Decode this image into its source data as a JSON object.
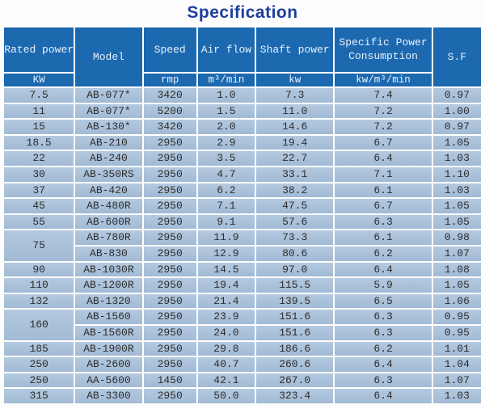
{
  "title": "Specification",
  "colors": {
    "title_color": "#1c3f9c",
    "header_bg": "#1c69b0",
    "header_text": "#e8f1fa",
    "row_bg": "#a7bfd9",
    "body_text": "#2d2d2d",
    "grid_line": "#ffffff"
  },
  "table": {
    "headers": [
      {
        "label": "Rated power",
        "unit": "KW"
      },
      {
        "label": "Model",
        "unit": ""
      },
      {
        "label": "Speed",
        "unit": "rmp"
      },
      {
        "label": "Air flow",
        "unit": "m³/min"
      },
      {
        "label": "Shaft power",
        "unit": "kw"
      },
      {
        "label": "Specific Power Consumption",
        "unit": "kw/m³/min"
      },
      {
        "label": "S.F",
        "unit": ""
      }
    ],
    "rows": [
      {
        "kw": "7.5",
        "kw_rowspan": 1,
        "model": "AB-077*",
        "speed": "3420",
        "air_flow": "1.0",
        "shaft_power": "7.3",
        "specific_power": "7.4",
        "sf": "0.97"
      },
      {
        "kw": "11",
        "kw_rowspan": 1,
        "model": "AB-077*",
        "speed": "5200",
        "air_flow": "1.5",
        "shaft_power": "11.0",
        "specific_power": "7.2",
        "sf": "1.00"
      },
      {
        "kw": "15",
        "kw_rowspan": 1,
        "model": "AB-130*",
        "speed": "3420",
        "air_flow": "2.0",
        "shaft_power": "14.6",
        "specific_power": "7.2",
        "sf": "0.97"
      },
      {
        "kw": "18.5",
        "kw_rowspan": 1,
        "model": "AB-210",
        "speed": "2950",
        "air_flow": "2.9",
        "shaft_power": "19.4",
        "specific_power": "6.7",
        "sf": "1.05"
      },
      {
        "kw": "22",
        "kw_rowspan": 1,
        "model": "AB-240",
        "speed": "2950",
        "air_flow": "3.5",
        "shaft_power": "22.7",
        "specific_power": "6.4",
        "sf": "1.03"
      },
      {
        "kw": "30",
        "kw_rowspan": 1,
        "model": "AB-350RS",
        "speed": "2950",
        "air_flow": "4.7",
        "shaft_power": "33.1",
        "specific_power": "7.1",
        "sf": "1.10"
      },
      {
        "kw": "37",
        "kw_rowspan": 1,
        "model": "AB-420",
        "speed": "2950",
        "air_flow": "6.2",
        "shaft_power": "38.2",
        "specific_power": "6.1",
        "sf": "1.03"
      },
      {
        "kw": "45",
        "kw_rowspan": 1,
        "model": "AB-480R",
        "speed": "2950",
        "air_flow": "7.1",
        "shaft_power": "47.5",
        "specific_power": "6.7",
        "sf": "1.05"
      },
      {
        "kw": "55",
        "kw_rowspan": 1,
        "model": "AB-600R",
        "speed": "2950",
        "air_flow": "9.1",
        "shaft_power": "57.6",
        "specific_power": "6.3",
        "sf": "1.05"
      },
      {
        "kw": "75",
        "kw_rowspan": 2,
        "model": "AB-780R",
        "speed": "2950",
        "air_flow": "11.9",
        "shaft_power": "73.3",
        "specific_power": "6.1",
        "sf": "0.98"
      },
      {
        "kw": null,
        "kw_rowspan": 0,
        "model": "AB-830",
        "speed": "2950",
        "air_flow": "12.9",
        "shaft_power": "80.6",
        "specific_power": "6.2",
        "sf": "1.07"
      },
      {
        "kw": "90",
        "kw_rowspan": 1,
        "model": "AB-1030R",
        "speed": "2950",
        "air_flow": "14.5",
        "shaft_power": "97.0",
        "specific_power": "6.4",
        "sf": "1.08"
      },
      {
        "kw": "110",
        "kw_rowspan": 1,
        "model": "AB-1200R",
        "speed": "2950",
        "air_flow": "19.4",
        "shaft_power": "115.5",
        "specific_power": "5.9",
        "sf": "1.05"
      },
      {
        "kw": "132",
        "kw_rowspan": 1,
        "model": "AB-1320",
        "speed": "2950",
        "air_flow": "21.4",
        "shaft_power": "139.5",
        "specific_power": "6.5",
        "sf": "1.06"
      },
      {
        "kw": "160",
        "kw_rowspan": 2,
        "model": "AB-1560",
        "speed": "2950",
        "air_flow": "23.9",
        "shaft_power": "151.6",
        "specific_power": "6.3",
        "sf": "0.95"
      },
      {
        "kw": null,
        "kw_rowspan": 0,
        "model": "AB-1560R",
        "speed": "2950",
        "air_flow": "24.0",
        "shaft_power": "151.6",
        "specific_power": "6.3",
        "sf": "0.95"
      },
      {
        "kw": "185",
        "kw_rowspan": 1,
        "model": "AB-1900R",
        "speed": "2950",
        "air_flow": "29.8",
        "shaft_power": "186.6",
        "specific_power": "6.2",
        "sf": "1.01"
      },
      {
        "kw": "250",
        "kw_rowspan": 1,
        "model": "AB-2600",
        "speed": "2950",
        "air_flow": "40.7",
        "shaft_power": "260.6",
        "specific_power": "6.4",
        "sf": "1.04"
      },
      {
        "kw": "250",
        "kw_rowspan": 1,
        "model": "AA-5600",
        "speed": "1450",
        "air_flow": "42.1",
        "shaft_power": "267.0",
        "specific_power": "6.3",
        "sf": "1.07"
      },
      {
        "kw": "315",
        "kw_rowspan": 1,
        "model": "AB-3300",
        "speed": "2950",
        "air_flow": "50.0",
        "shaft_power": "323.4",
        "specific_power": "6.4",
        "sf": "1.03"
      }
    ]
  }
}
